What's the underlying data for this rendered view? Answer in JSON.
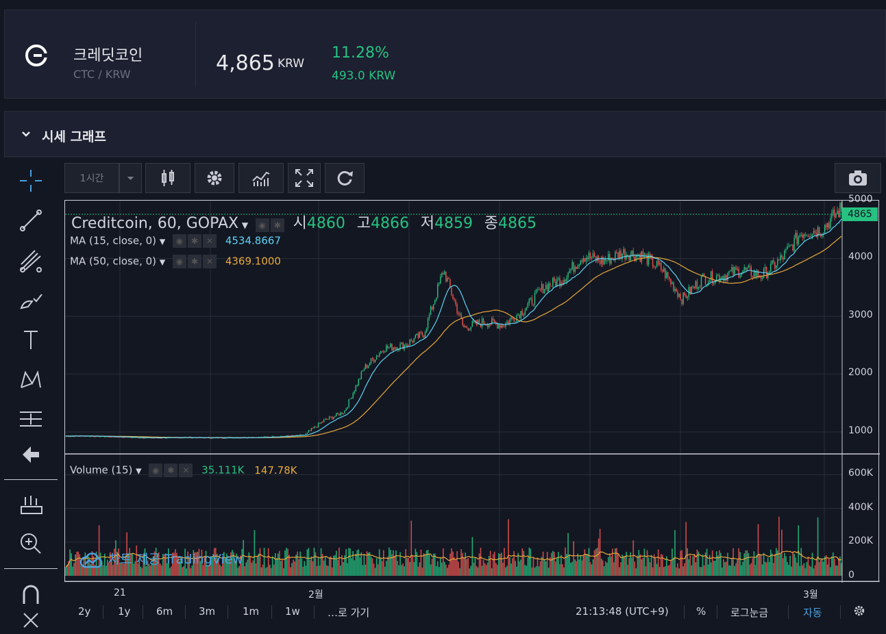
{
  "coin": {
    "name": "크레딧코인",
    "pair": "CTC / KRW",
    "price": "4,865",
    "price_unit": "KRW",
    "change_pct": "11.28%",
    "change_abs": "493.0 KRW"
  },
  "panel": {
    "title": "시세 그래프"
  },
  "toolbar": {
    "interval_label": "1시간"
  },
  "legend": {
    "main_title": "Creditcoin, 60, GOPAX",
    "open_label": "시",
    "open": "4860",
    "high_label": "고",
    "high": "4866",
    "low_label": "저",
    "low": "4859",
    "close_label": "종",
    "close": "4865",
    "ma15_label": "MA (15, close, 0)",
    "ma15_value": "4534.8667",
    "ma50_label": "MA (50, close, 0)",
    "ma50_value": "4369.1000",
    "volume_label": "Volume (15)",
    "volume_value": "35.111K",
    "volume_ma": "147.78K"
  },
  "price_tag": "4865",
  "watermark": "차트 제공 TradingView",
  "chart_data": {
    "type": "line",
    "x_ticks": [
      "21",
      "2월",
      "3월"
    ],
    "price_axis": [
      "5000",
      "4000",
      "3000",
      "2000",
      "1000"
    ],
    "volume_axis": [
      "600K",
      "400K",
      "200K",
      "0"
    ],
    "ylim": [
      620,
      5000
    ],
    "series": [
      {
        "values": [
          930,
          930,
          920,
          910,
          900,
          900,
          905,
          900,
          900,
          905,
          910,
          930,
          950,
          1200,
          1350,
          2100,
          2450,
          2500,
          2700,
          3800,
          2800,
          2900,
          2850,
          3100,
          3500,
          3650,
          4050,
          3950,
          4100,
          4050,
          3800,
          3300,
          3650,
          3700,
          3800,
          3700,
          4000,
          4450,
          4500,
          4865
        ]
      }
    ],
    "colors": {
      "up": "#26c281",
      "down": "#ef5350",
      "ma15": "#5ed3f3",
      "ma50": "#e8a93a"
    }
  },
  "bottom_bar": {
    "ranges": [
      "2y",
      "1y",
      "6m",
      "3m",
      "1m",
      "1w"
    ],
    "goto": "…로 가기",
    "time": "21:13:48 (UTC+9)",
    "percent": "%",
    "log": "로그눈금",
    "auto": "자동"
  }
}
